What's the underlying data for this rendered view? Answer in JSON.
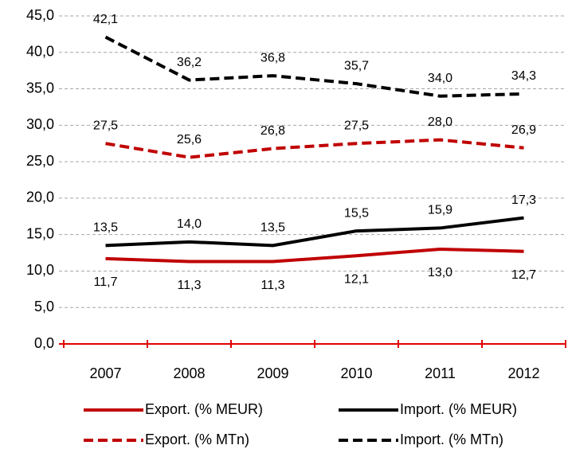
{
  "chart_data": {
    "type": "line",
    "categories": [
      "2007",
      "2008",
      "2009",
      "2010",
      "2011",
      "2012"
    ],
    "series": [
      {
        "name": "Export. (% MEUR)",
        "color": "#c00000",
        "dashed": false,
        "values": [
          11.7,
          11.3,
          11.3,
          12.1,
          13.0,
          12.7
        ],
        "value_labels": [
          "11,7",
          "11,3",
          "11,3",
          "12,1",
          "13,0",
          "12,7"
        ]
      },
      {
        "name": "Import. (% MEUR)",
        "color": "#000000",
        "dashed": false,
        "values": [
          13.5,
          14.0,
          13.5,
          15.5,
          15.9,
          17.3
        ],
        "value_labels": [
          "13,5",
          "14,0",
          "13,5",
          "15,5",
          "15,9",
          "17,3"
        ]
      },
      {
        "name": "Export. (% MTn)",
        "color": "#c00000",
        "dashed": true,
        "values": [
          27.5,
          25.6,
          26.8,
          27.5,
          28.0,
          26.9
        ],
        "value_labels": [
          "27,5",
          "25,6",
          "26,8",
          "27,5",
          "28,0",
          "26,9"
        ]
      },
      {
        "name": "Import. (% MTn)",
        "color": "#000000",
        "dashed": true,
        "values": [
          42.1,
          36.2,
          36.8,
          35.7,
          34.0,
          34.3
        ],
        "value_labels": [
          "42,1",
          "36,2",
          "36,8",
          "35,7",
          "34,0",
          "34,3"
        ]
      }
    ],
    "ylim": [
      0,
      45
    ],
    "yticks": [
      {
        "value": 0,
        "label": "0,0"
      },
      {
        "value": 5,
        "label": "5,0"
      },
      {
        "value": 10,
        "label": "10,0"
      },
      {
        "value": 15,
        "label": "15,0"
      },
      {
        "value": 20,
        "label": "20,0"
      },
      {
        "value": 25,
        "label": "25,0"
      },
      {
        "value": 30,
        "label": "30,0"
      },
      {
        "value": 35,
        "label": "35,0"
      },
      {
        "value": 40,
        "label": "40,0"
      },
      {
        "value": 45,
        "label": "45,0"
      }
    ],
    "grid": true
  }
}
